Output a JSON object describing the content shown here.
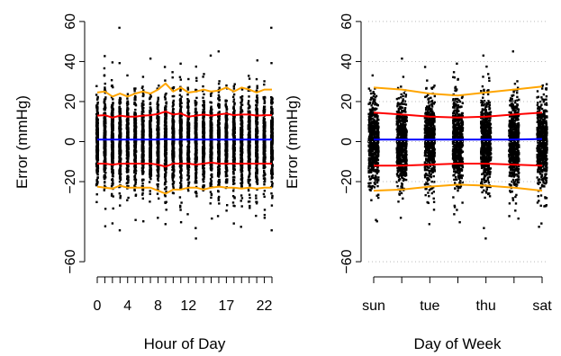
{
  "chart_data": [
    {
      "type": "scatter",
      "xlabel": "Hour of Day",
      "ylabel": "Error (mmHg)",
      "x_values": [
        0,
        1,
        2,
        3,
        4,
        5,
        6,
        7,
        8,
        9,
        10,
        11,
        12,
        13,
        14,
        15,
        16,
        17,
        18,
        19,
        20,
        21,
        22,
        23
      ],
      "x_tick_labels": [
        "0",
        "4",
        "8",
        "12",
        "17",
        "22"
      ],
      "x_tick_values": [
        0,
        4,
        8,
        12,
        17,
        22
      ],
      "y_ticks": [
        -60,
        -20,
        0,
        20,
        40,
        60
      ],
      "ylim": [
        -64,
        64
      ],
      "grid": false,
      "series": [
        {
          "color": "#ffa500",
          "values": [
            24.5,
            25,
            22.5,
            24,
            22.5,
            24,
            25,
            24,
            26,
            29,
            25,
            27,
            24.5,
            25,
            26,
            25,
            25.5,
            27,
            25,
            27,
            26,
            24.5,
            26,
            26
          ]
        },
        {
          "color": "#ff0000",
          "values": [
            13,
            13.2,
            12,
            13,
            12.5,
            12.5,
            13,
            13.2,
            13.8,
            15,
            13.5,
            14,
            12.5,
            13,
            13.5,
            13,
            13.5,
            14,
            13.2,
            13.5,
            13.5,
            13,
            13.2,
            13.2
          ]
        },
        {
          "color": "#0000ff",
          "values": [
            1,
            1,
            1,
            1,
            1,
            1,
            1,
            1,
            1,
            1.3,
            1,
            1,
            1,
            1,
            1,
            1,
            1,
            1,
            1,
            1,
            1,
            1,
            1,
            1
          ]
        },
        {
          "color": "#ff0000",
          "values": [
            -11,
            -11,
            -11.5,
            -11,
            -11,
            -11,
            -11,
            -11,
            -11.5,
            -12.5,
            -11,
            -11,
            -11,
            -11.5,
            -11,
            -10.5,
            -11,
            -11,
            -11,
            -11,
            -11,
            -11,
            -11,
            -11
          ]
        },
        {
          "color": "#ffa500",
          "values": [
            -22.5,
            -23,
            -23.5,
            -22,
            -23,
            -23,
            -23,
            -23,
            -24.5,
            -26,
            -24,
            -24,
            -23,
            -23,
            -24,
            -23,
            -22.5,
            -23,
            -23,
            -23.5,
            -23,
            -23.5,
            -23,
            -23
          ]
        }
      ]
    },
    {
      "type": "scatter",
      "xlabel": "Day of Week",
      "ylabel": "Error (mmHg)",
      "x_values": [
        1,
        2,
        3,
        4,
        5,
        6,
        7
      ],
      "x_tick_labels": [
        "sun",
        "tue",
        "thu",
        "sat"
      ],
      "x_tick_values": [
        1,
        3,
        5,
        7
      ],
      "y_ticks": [
        -60,
        -20,
        0,
        20,
        40,
        60
      ],
      "ylim": [
        -64,
        64
      ],
      "grid": true,
      "series": [
        {
          "color": "#ffa500",
          "values": [
            27,
            26,
            24,
            23,
            24.5,
            26,
            27.5
          ]
        },
        {
          "color": "#ff0000",
          "values": [
            14.5,
            13.5,
            12.5,
            12,
            12.5,
            13.5,
            14.5
          ]
        },
        {
          "color": "#0000ff",
          "values": [
            1,
            1,
            1,
            1,
            1,
            1,
            1.3
          ]
        },
        {
          "color": "#ff0000",
          "values": [
            -12,
            -12,
            -11.5,
            -11,
            -11,
            -11.5,
            -12
          ]
        },
        {
          "color": "#ffa500",
          "values": [
            -24.5,
            -24,
            -22.5,
            -21.5,
            -22,
            -23,
            -24.5
          ]
        }
      ]
    }
  ]
}
